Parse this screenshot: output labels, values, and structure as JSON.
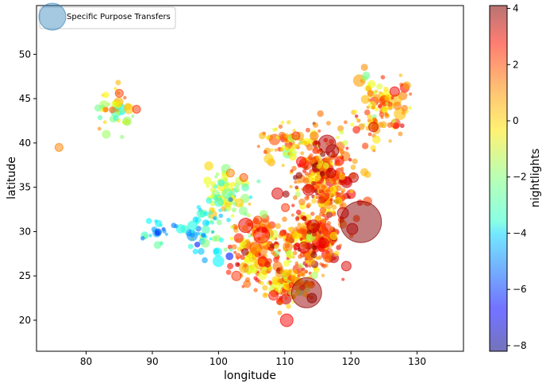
{
  "chart_data": {
    "type": "scatter",
    "xlabel": "longitude",
    "ylabel": "latitude",
    "xlim": [
      72.5,
      137
    ],
    "ylim": [
      16.5,
      55.5
    ],
    "xticks": [
      80,
      90,
      100,
      110,
      120,
      130
    ],
    "yticks": [
      20,
      25,
      30,
      35,
      40,
      45,
      50
    ],
    "grid": false,
    "legend": {
      "placement": "top-left",
      "label": "Specific Purpose Transfers"
    },
    "colorbar": {
      "label": "nightlights",
      "colormap": "jet",
      "range": [
        -8.2,
        4.1
      ],
      "ticks": [
        -8,
        -6,
        -4,
        -2,
        0,
        2,
        4
      ],
      "tick_labels": [
        "−8",
        "−6",
        "−4",
        "−2",
        "0",
        "2",
        "4"
      ]
    },
    "size_meaning": "Specific Purpose Transfers",
    "color_meaning": "nightlights",
    "points": [
      {
        "x": 121.5,
        "y": 31.1,
        "c": 4.0,
        "s": 26
      },
      {
        "x": 113.3,
        "y": 23.1,
        "c": 3.8,
        "s": 19
      },
      {
        "x": 116.4,
        "y": 39.9,
        "c": 3.5,
        "s": 11
      },
      {
        "x": 106.5,
        "y": 29.6,
        "c": 2.5,
        "s": 10
      },
      {
        "x": 108.9,
        "y": 34.3,
        "c": 3.0,
        "s": 7
      },
      {
        "x": 104.1,
        "y": 30.7,
        "c": 2.8,
        "s": 9
      },
      {
        "x": 114.3,
        "y": 30.6,
        "c": 3.2,
        "s": 8
      },
      {
        "x": 117.2,
        "y": 39.1,
        "c": 3.6,
        "s": 8
      },
      {
        "x": 110.3,
        "y": 20.0,
        "c": 2.6,
        "s": 8
      },
      {
        "x": 118.8,
        "y": 32.1,
        "c": 3.4,
        "s": 7
      },
      {
        "x": 120.2,
        "y": 30.3,
        "c": 3.5,
        "s": 7
      },
      {
        "x": 113.6,
        "y": 34.7,
        "c": 3.1,
        "s": 7
      },
      {
        "x": 112.9,
        "y": 28.2,
        "c": 2.9,
        "s": 7
      },
      {
        "x": 114.1,
        "y": 22.5,
        "c": 3.9,
        "s": 6
      },
      {
        "x": 119.3,
        "y": 26.1,
        "c": 3.0,
        "s": 6
      },
      {
        "x": 123.4,
        "y": 41.8,
        "c": 3.0,
        "s": 6
      },
      {
        "x": 126.6,
        "y": 45.8,
        "c": 2.7,
        "s": 6
      },
      {
        "x": 117.0,
        "y": 36.6,
        "c": 3.3,
        "s": 6
      },
      {
        "x": 112.5,
        "y": 37.9,
        "c": 2.6,
        "s": 6
      },
      {
        "x": 106.7,
        "y": 26.6,
        "c": 2.3,
        "s": 6
      },
      {
        "x": 102.7,
        "y": 25.0,
        "c": 2.0,
        "s": 6
      },
      {
        "x": 108.3,
        "y": 22.8,
        "c": 2.3,
        "s": 6
      },
      {
        "x": 120.4,
        "y": 36.1,
        "c": 3.3,
        "s": 6
      },
      {
        "x": 115.9,
        "y": 28.7,
        "c": 2.9,
        "s": 6
      },
      {
        "x": 87.6,
        "y": 43.8,
        "c": 2.0,
        "s": 5
      },
      {
        "x": 85.0,
        "y": 45.6,
        "c": 1.8,
        "s": 5
      },
      {
        "x": 101.8,
        "y": 36.6,
        "c": 1.0,
        "s": 5
      },
      {
        "x": 103.8,
        "y": 36.1,
        "c": 1.5,
        "s": 5
      },
      {
        "x": 111.7,
        "y": 40.8,
        "c": 2.0,
        "s": 5
      },
      {
        "x": 75.9,
        "y": 39.5,
        "c": 1.0,
        "s": 5
      },
      {
        "x": 110.1,
        "y": 32.7,
        "c": 2.0,
        "s": 5
      },
      {
        "x": 105.9,
        "y": 31.3,
        "c": 1.6,
        "s": 5
      }
    ]
  }
}
